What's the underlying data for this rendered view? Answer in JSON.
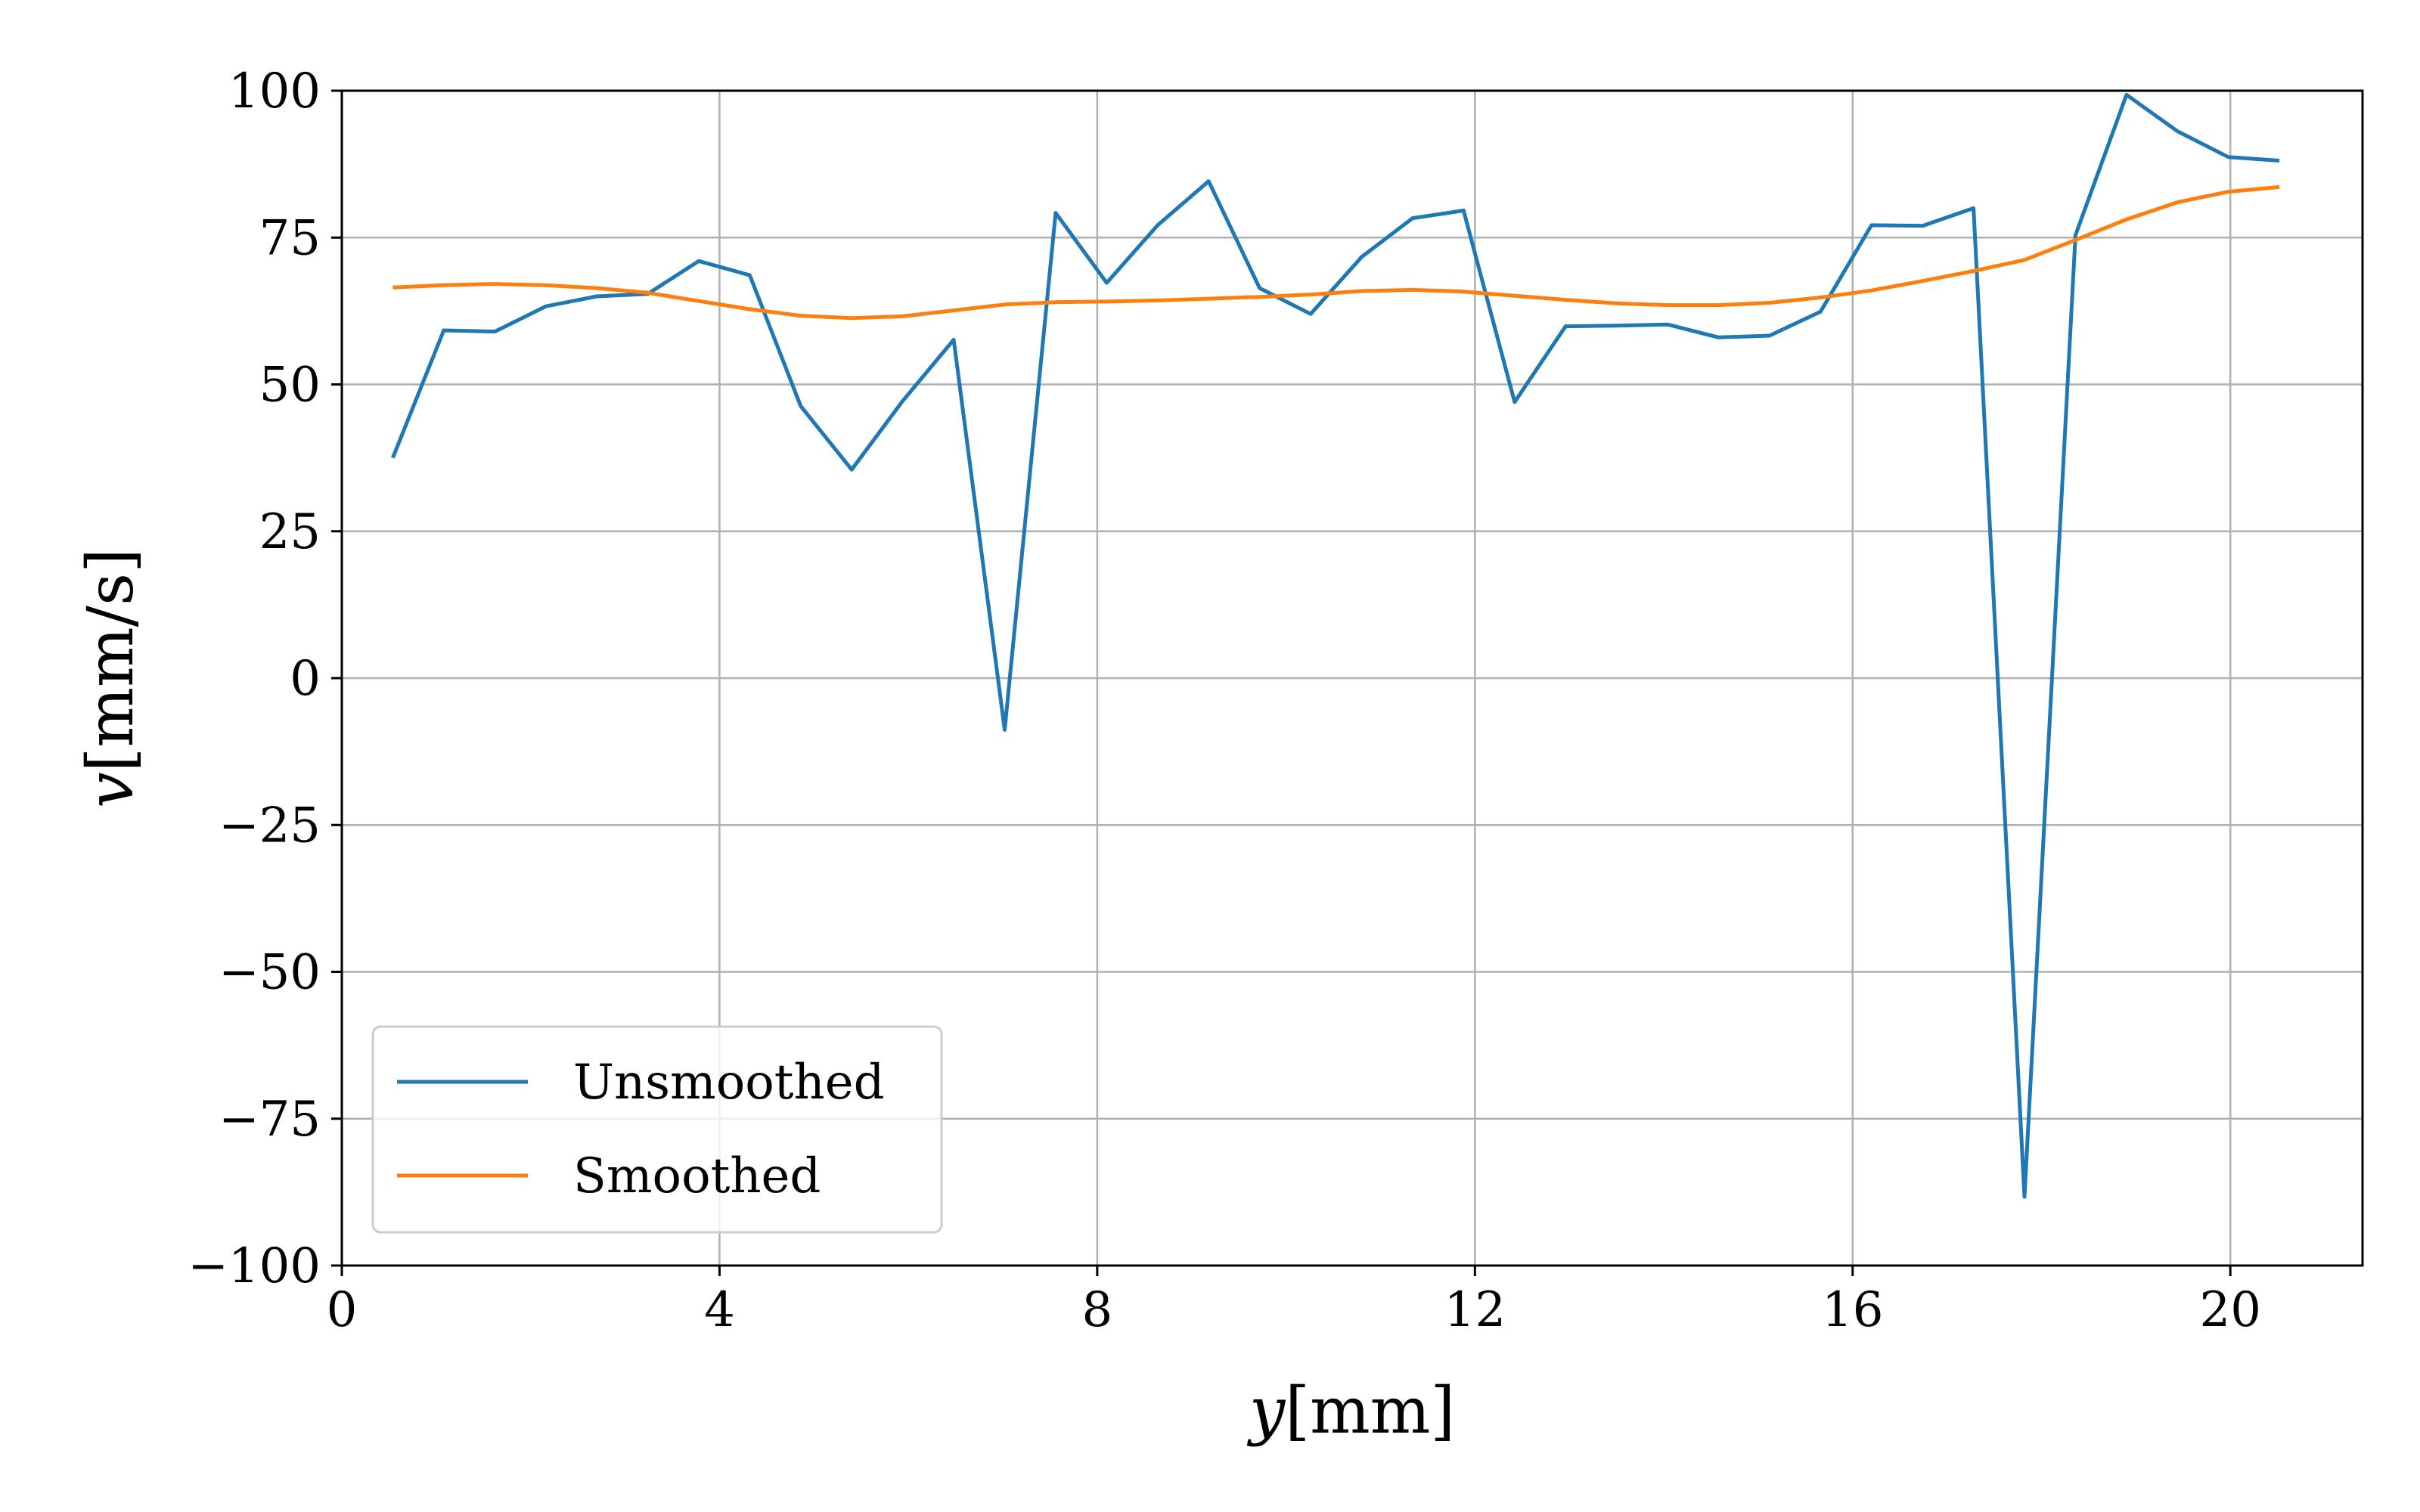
{
  "chart_data": {
    "type": "line",
    "xlabel": {
      "var": "y",
      "unit": "[mm]"
    },
    "ylabel": {
      "var": "v",
      "unit": "[mm/s]"
    },
    "xlim": [
      0,
      21.4
    ],
    "ylim": [
      -100,
      100
    ],
    "xticks": [
      0,
      4,
      8,
      12,
      16,
      20
    ],
    "yticks": [
      -100,
      -75,
      -50,
      -25,
      0,
      25,
      50,
      75,
      100
    ],
    "ytick_labels": [
      "−100",
      "−75",
      "−50",
      "−25",
      "0",
      "25",
      "50",
      "75",
      "100"
    ],
    "xtick_labels": [
      "0",
      "4",
      "8",
      "12",
      "16",
      "20"
    ],
    "grid": true,
    "legend_position": "lower-left",
    "series": [
      {
        "name": "Unsmoothed",
        "color": "#1f77b4",
        "x": [
          0.54,
          1.08,
          1.62,
          2.16,
          2.7,
          3.24,
          3.78,
          4.32,
          4.86,
          5.4,
          5.94,
          6.48,
          7.02,
          7.56,
          8.1,
          8.64,
          9.18,
          9.72,
          10.26,
          10.8,
          11.34,
          11.88,
          12.42,
          12.96,
          13.5,
          14.04,
          14.58,
          15.12,
          15.66,
          16.2,
          16.74,
          17.28,
          17.82,
          18.36,
          18.9,
          19.44,
          19.98,
          20.52
        ],
        "y": [
          37.5,
          59.2,
          59.0,
          63.3,
          65.0,
          65.4,
          71.0,
          68.6,
          46.3,
          35.5,
          47.2,
          57.6,
          -8.8,
          79.2,
          67.3,
          77.1,
          84.6,
          66.4,
          62.0,
          71.7,
          78.3,
          79.6,
          47.0,
          59.9,
          60.0,
          60.2,
          58.0,
          58.3,
          62.4,
          77.1,
          77.0,
          80.0,
          -88.3,
          75.4,
          99.3,
          93.1,
          88.7,
          88.1
        ]
      },
      {
        "name": "Smoothed",
        "color": "#ff7f0e",
        "x": [
          0.54,
          1.08,
          1.62,
          2.16,
          2.7,
          3.24,
          3.78,
          4.32,
          4.86,
          5.4,
          5.94,
          6.48,
          7.02,
          7.56,
          8.1,
          8.64,
          9.18,
          9.72,
          10.26,
          10.8,
          11.34,
          11.88,
          12.42,
          12.96,
          13.5,
          14.04,
          14.58,
          15.12,
          15.66,
          16.2,
          16.74,
          17.28,
          17.82,
          18.36,
          18.9,
          19.44,
          19.98,
          20.52
        ],
        "y": [
          66.5,
          66.9,
          67.1,
          66.9,
          66.4,
          65.6,
          64.2,
          62.8,
          61.7,
          61.3,
          61.6,
          62.6,
          63.6,
          64.0,
          64.1,
          64.3,
          64.6,
          64.9,
          65.3,
          65.9,
          66.1,
          65.8,
          65.1,
          64.4,
          63.8,
          63.5,
          63.5,
          63.9,
          64.8,
          66.0,
          67.6,
          69.3,
          71.2,
          74.6,
          78.1,
          81.0,
          82.8,
          83.6
        ]
      }
    ]
  }
}
